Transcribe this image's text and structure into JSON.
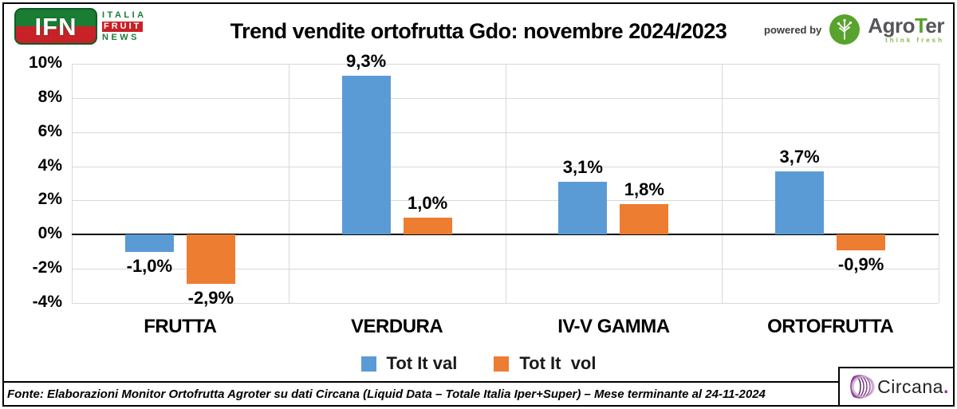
{
  "header": {
    "title": "Trend vendite ortofrutta Gdo: novembre 2024/2023",
    "ifn_logo": {
      "abbr": "IFN",
      "line1": "ITALIA",
      "line2": "FRUIT",
      "line3": "NEWS",
      "green": "#1b7c33",
      "red": "#c92128"
    },
    "powered_by_label": "powered by",
    "agroter": {
      "name_prefix": "Agro",
      "name_t": "T",
      "name_suffix": "er",
      "tagline": "think fresh",
      "green": "#57a32c"
    }
  },
  "chart_data": {
    "type": "bar",
    "title": "Trend vendite ortofrutta Gdo: novembre 2024/2023",
    "categories": [
      "FRUTTA",
      "VERDURA",
      "IV-V GAMMA",
      "ORTOFRUTTA"
    ],
    "series": [
      {
        "name": "Tot It val",
        "color": "#5B9BD5",
        "values": [
          -1.0,
          9.3,
          3.1,
          3.7
        ],
        "labels": [
          "-1,0%",
          "9,3%",
          "3,1%",
          "3,7%"
        ]
      },
      {
        "name": "Tot It  vol",
        "color": "#ED7D31",
        "values": [
          -2.9,
          1.0,
          1.8,
          -0.9
        ],
        "labels": [
          "-2,9%",
          "1,0%",
          "1,8%",
          "-0,9%"
        ]
      }
    ],
    "yticks": [
      {
        "label": "10%",
        "value": 10
      },
      {
        "label": "8%",
        "value": 8
      },
      {
        "label": "6%",
        "value": 6
      },
      {
        "label": "4%",
        "value": 4
      },
      {
        "label": "2%",
        "value": 2
      },
      {
        "label": "0%",
        "value": 0
      },
      {
        "label": "-2%",
        "value": -2
      },
      {
        "label": "-4%",
        "value": -4
      }
    ],
    "ylim": [
      -4,
      10
    ],
    "grid": true,
    "legend_position": "bottom"
  },
  "footer": {
    "source": "Fonte: Elaborazioni Monitor Ortofrutta Agroter su dati Circana (Liquid Data – Totale Italia Iper+Super) – Mese terminante al 24-11-2024",
    "circana": {
      "name": "Circana",
      "dot": ".",
      "purple": "#93328e"
    }
  }
}
